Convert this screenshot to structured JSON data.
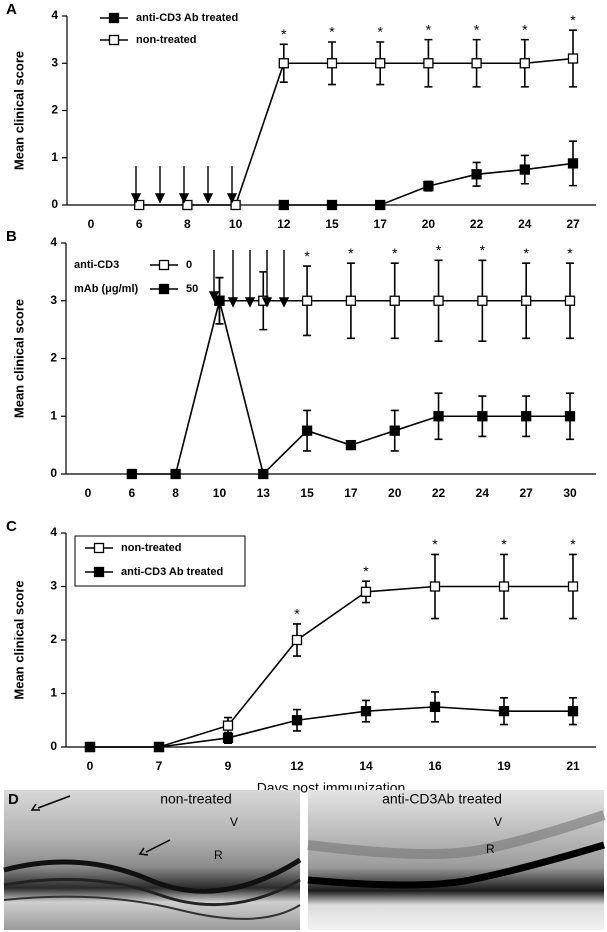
{
  "chart_data": [
    {
      "type": "line",
      "panel_label": "A",
      "y_label": "Mean clinical score",
      "categories": [
        "0",
        "6",
        "8",
        "10",
        "12",
        "15",
        "17",
        "20",
        "22",
        "24",
        "27"
      ],
      "ylim": [
        0,
        4
      ],
      "yticks": [
        0,
        1,
        2,
        3,
        4
      ],
      "legend_title": null,
      "series": [
        {
          "name": "anti-CD3 Ab treated",
          "color": "#000000",
          "fill": "#000000",
          "values": [
            null,
            null,
            null,
            null,
            0,
            0,
            0,
            0.4,
            0.65,
            0.75,
            0.88
          ],
          "errors": [
            null,
            null,
            null,
            null,
            null,
            null,
            null,
            0.1,
            0.25,
            0.3,
            0.47
          ]
        },
        {
          "name": "non-treated",
          "color": "#000000",
          "fill": "#ffffff",
          "values": [
            null,
            0,
            0,
            0,
            3,
            3,
            3,
            3,
            3,
            3,
            3.1
          ],
          "errors": [
            null,
            null,
            null,
            null,
            0.4,
            0.45,
            0.45,
            0.5,
            0.5,
            0.5,
            0.6
          ]
        }
      ],
      "significance": [
        null,
        null,
        null,
        null,
        "*",
        "*",
        "*",
        "*",
        "*",
        "*",
        "*"
      ]
    },
    {
      "type": "line",
      "panel_label": "B",
      "y_label": "Mean clinical score",
      "categories": [
        "0",
        "6",
        "8",
        "10",
        "13",
        "15",
        "17",
        "20",
        "22",
        "24",
        "27",
        "30"
      ],
      "ylim": [
        0,
        4
      ],
      "yticks": [
        0,
        1,
        2,
        3,
        4
      ],
      "legend_title": [
        "anti-CD3",
        "mAb (μg/ml)"
      ],
      "series": [
        {
          "name": "0",
          "color": "#000000",
          "fill": "#ffffff",
          "values": [
            null,
            null,
            null,
            3,
            3,
            3,
            3,
            3,
            3,
            3,
            3,
            3
          ],
          "errors": [
            null,
            null,
            null,
            0.4,
            0.5,
            0.6,
            0.65,
            0.65,
            0.7,
            0.7,
            0.65,
            0.65
          ]
        },
        {
          "name": "50",
          "color": "#000000",
          "fill": "#000000",
          "values": [
            null,
            0,
            0,
            3,
            0,
            0.75,
            0.5,
            0.75,
            1,
            1,
            1,
            1
          ],
          "errors": [
            null,
            null,
            null,
            0.4,
            null,
            0.35,
            0.05,
            0.35,
            0.4,
            0.35,
            0.35,
            0.4
          ]
        }
      ],
      "significance": [
        null,
        null,
        null,
        null,
        null,
        "*",
        "*",
        "*",
        "*",
        "*",
        "*",
        "*"
      ]
    },
    {
      "type": "line",
      "panel_label": "C",
      "y_label": "Mean clinical score",
      "x_label": "Days post immunization",
      "categories": [
        "0",
        "7",
        "9",
        "12",
        "14",
        "16",
        "19",
        "21"
      ],
      "ylim": [
        0,
        4
      ],
      "yticks": [
        0,
        1,
        2,
        3,
        4
      ],
      "legend_title": null,
      "series": [
        {
          "name": "non-treated",
          "color": "#000000",
          "fill": "#ffffff",
          "values": [
            0,
            0,
            0.4,
            2,
            2.9,
            3,
            3,
            3
          ],
          "errors": [
            null,
            null,
            0.15,
            0.3,
            0.2,
            0.6,
            0.6,
            0.6
          ]
        },
        {
          "name": "anti-CD3 Ab treated",
          "color": "#000000",
          "fill": "#000000",
          "values": [
            0,
            0,
            0.17,
            0.5,
            0.67,
            0.75,
            0.67,
            0.67
          ],
          "errors": [
            null,
            null,
            0.1,
            0.2,
            0.2,
            0.28,
            0.25,
            0.25
          ]
        }
      ],
      "significance": [
        null,
        null,
        null,
        "*",
        "*",
        "*",
        "*",
        "*"
      ]
    }
  ],
  "panel_d": {
    "label": "D",
    "left": {
      "title": "non-treated",
      "v": "V",
      "r": "R"
    },
    "right": {
      "title": "anti-CD3Ab treated",
      "v": "V",
      "r": "R"
    }
  }
}
